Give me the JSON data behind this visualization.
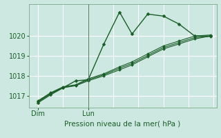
{
  "xlabel": "Pression niveau de la mer( hPa )",
  "bg_color": "#cce8e0",
  "grid_color": "#ffffff",
  "line_color": "#1a5c28",
  "ylim": [
    1016.4,
    1021.6
  ],
  "xlim": [
    0,
    12
  ],
  "yticks": [
    1017,
    1018,
    1019,
    1020
  ],
  "xtick_positions": [
    0.6,
    3.8
  ],
  "xtick_labels": [
    "Dim",
    "Lun"
  ],
  "line1_x": [
    0.6,
    1.4,
    2.2,
    3.0,
    3.8,
    4.8,
    5.8,
    6.6,
    7.6,
    8.6,
    9.6,
    10.6,
    11.6
  ],
  "line1_y": [
    1016.65,
    1017.05,
    1017.4,
    1017.75,
    1017.8,
    1019.6,
    1021.2,
    1020.1,
    1021.1,
    1021.0,
    1020.6,
    1020.0,
    1020.0
  ],
  "line2_x": [
    0.6,
    1.4,
    2.2,
    3.0,
    3.8,
    4.8,
    5.8,
    6.6,
    7.6,
    8.6,
    9.6,
    10.6,
    11.6
  ],
  "line2_y": [
    1016.7,
    1017.1,
    1017.4,
    1017.5,
    1017.75,
    1018.0,
    1018.3,
    1018.55,
    1018.95,
    1019.35,
    1019.6,
    1019.85,
    1020.0
  ],
  "line3_x": [
    0.6,
    1.4,
    2.2,
    3.0,
    3.8,
    4.8,
    5.8,
    6.6,
    7.6,
    8.6,
    9.6,
    10.6,
    11.6
  ],
  "line3_y": [
    1016.75,
    1017.15,
    1017.45,
    1017.55,
    1017.85,
    1018.1,
    1018.45,
    1018.7,
    1019.1,
    1019.5,
    1019.75,
    1020.0,
    1020.05
  ],
  "line4_x": [
    0.6,
    1.4,
    2.2,
    3.0,
    3.8,
    4.8,
    5.8,
    6.6,
    7.6,
    8.6,
    9.6,
    10.6,
    11.6
  ],
  "line4_y": [
    1016.72,
    1017.12,
    1017.42,
    1017.52,
    1017.8,
    1018.05,
    1018.38,
    1018.62,
    1019.02,
    1019.42,
    1019.67,
    1019.92,
    1019.98
  ],
  "vline_x": 3.8,
  "marker": "D",
  "markersize": 2.5
}
